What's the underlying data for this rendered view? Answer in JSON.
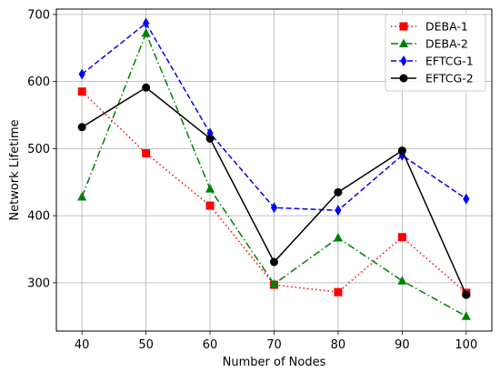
{
  "chart_data": {
    "type": "line",
    "title": "",
    "xlabel": "Number of Nodes",
    "ylabel": "Network Lifetime",
    "x": [
      40,
      50,
      60,
      70,
      80,
      90,
      100
    ],
    "xlim": [
      36,
      104
    ],
    "ylim": [
      228,
      708
    ],
    "xticks": [
      "40",
      "50",
      "60",
      "70",
      "80",
      "90",
      "100"
    ],
    "yticks": [
      "300",
      "400",
      "500",
      "600",
      "700"
    ],
    "grid": true,
    "legend_position": "top-right",
    "series": [
      {
        "name": "DEBA-1",
        "values": [
          585,
          493,
          415,
          297,
          286,
          368,
          285
        ],
        "color": "#ff0000",
        "dash": "dotted",
        "marker": "square"
      },
      {
        "name": "DEBA-2",
        "values": [
          428,
          672,
          440,
          298,
          367,
          303,
          250
        ],
        "color": "#008000",
        "dash": "dashdot",
        "marker": "triangle"
      },
      {
        "name": "EFTCG-1",
        "values": [
          611,
          687,
          523,
          412,
          408,
          490,
          425
        ],
        "color": "#0000ff",
        "dash": "dashed",
        "marker": "diamond"
      },
      {
        "name": "EFTCG-2",
        "values": [
          532,
          591,
          515,
          331,
          435,
          497,
          282
        ],
        "color": "#000000",
        "dash": "solid",
        "marker": "circle"
      }
    ]
  }
}
